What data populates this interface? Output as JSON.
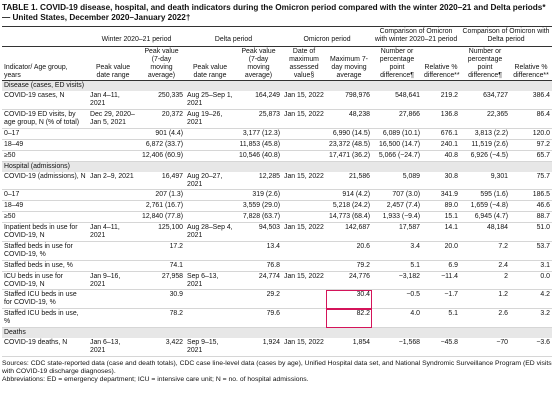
{
  "title": "TABLE 1. COVID-19 disease, hospital, and death indicators during the Omicron period compared with the winter 2020–21 and Delta periods*— United States, December 2020–January 2022†",
  "column_groups": [
    "Winter 2020–21 period",
    "Delta period",
    "Omicron period",
    "Comparison of Omicron with winter 2020–21 period",
    "Comparison of Omicron with Delta period"
  ],
  "columns": [
    "Indicator/ Age group, years",
    "Peak value date range",
    "Peak value (7-day moving average)",
    "Peak value date range",
    "Peak value (7-day moving average)",
    "Date of maximum assessed value§",
    "Maximum 7-day moving average",
    "Number or percentage point difference¶",
    "Relative % difference**",
    "Number or percentage point difference¶",
    "Relative % difference**"
  ],
  "sections": [
    {
      "label": "Disease (cases, ED visits)",
      "rows": [
        [
          "COVID-19 cases, N",
          "Jan 4–11, 2021",
          "250,335",
          "Aug 25–Sep 1, 2021",
          "164,249",
          "Jan 15, 2022",
          "798,976",
          "548,641",
          "219.2",
          "634,727",
          "386.4"
        ],
        [
          "COVID-19 ED visits, by age group, N (% of total)",
          "Dec 29, 2020–Jan 5, 2021",
          "20,372",
          "Aug 19–26, 2021",
          "25,873",
          "Jan 15, 2022",
          "48,238",
          "27,866",
          "136.8",
          "22,365",
          "86.4"
        ],
        [
          "0–17",
          null,
          "901 (4.4)",
          null,
          "3,177 (12.3)",
          null,
          "6,990 (14.5)",
          "6,089 (10.1)",
          "676.1",
          "3,813 (2.2)",
          "120.0"
        ],
        [
          "18–49",
          null,
          "6,872 (33.7)",
          null,
          "11,853 (45.8)",
          null,
          "23,372 (48.5)",
          "16,500 (14.7)",
          "240.1",
          "11,519 (2.6)",
          "97.2"
        ],
        [
          "≥50",
          null,
          "12,406 (60.9)",
          null,
          "10,546 (40.8)",
          null,
          "17,471 (36.2)",
          "5,066 (−24.7)",
          "40.8",
          "6,926 (−4.5)",
          "65.7"
        ]
      ]
    },
    {
      "label": "Hospital (admissions)",
      "rows": [
        [
          "COVID-19 (admissions), N",
          "Jan 2–9, 2021",
          "16,497",
          "Aug 20–27, 2021",
          "12,285",
          "Jan 15, 2022",
          "21,586",
          "5,089",
          "30.8",
          "9,301",
          "75.7"
        ],
        [
          "0–17",
          null,
          "207 (1.3)",
          null,
          "319 (2.6)",
          null,
          "914 (4.2)",
          "707 (3.0)",
          "341.9",
          "595 (1.6)",
          "186.5"
        ],
        [
          "18–49",
          null,
          "2,761 (16.7)",
          null,
          "3,559 (29.0)",
          null,
          "5,218 (24.2)",
          "2,457 (7.4)",
          "89.0",
          "1,659 (−4.8)",
          "46.6"
        ],
        [
          "≥50",
          null,
          "12,840 (77.8)",
          null,
          "7,828 (63.7)",
          null,
          "14,773 (68.4)",
          "1,933 (−9.4)",
          "15.1",
          "6,945 (4.7)",
          "88.7"
        ],
        [
          "Inpatient beds in use for COVID-19, N",
          "Jan 4–11, 2021",
          "125,100",
          "Aug 28–Sep 4, 2021",
          "94,503",
          "Jan 15, 2022",
          "142,687",
          "17,587",
          "14.1",
          "48,184",
          "51.0"
        ],
        [
          "Staffed beds in use for COVID-19, %",
          null,
          "17.2",
          null,
          "13.4",
          null,
          "20.6",
          "3.4",
          "20.0",
          "7.2",
          "53.7"
        ],
        [
          "Staffed beds in use, %",
          null,
          "74.1",
          null,
          "76.8",
          null,
          "79.2",
          "5.1",
          "6.9",
          "2.4",
          "3.1"
        ],
        [
          "ICU beds in use for COVID-19, N",
          "Jan 9–16, 2021",
          "27,958",
          "Sep 6–13, 2021",
          "24,774",
          "Jan 15, 2022",
          "24,776",
          "−3,182",
          "−11.4",
          "2",
          "0.0"
        ],
        [
          "Staffed ICU beds in use for COVID-19, %",
          null,
          "30.9",
          null,
          "29.2",
          null,
          "30.4",
          "−0.5",
          "−1.7",
          "1.2",
          "4.2"
        ],
        [
          "Staffed ICU beds in use, %",
          null,
          "78.2",
          null,
          "79.6",
          null,
          "82.2",
          "4.0",
          "5.1",
          "2.6",
          "3.2"
        ]
      ]
    },
    {
      "label": "Deaths",
      "rows": [
        [
          "COVID-19 deaths, N",
          "Jan 6–13, 2021",
          "3,422",
          "Sep 9–15, 2021",
          "1,924",
          "Jan 15, 2022",
          "1,854",
          "−1,568",
          "−45.8",
          "−70",
          "−3.6"
        ]
      ]
    }
  ],
  "footnotes": [
    "Sources: CDC state-reported data (case and death totals), CDC case line-level data (cases by age), Unified Hospital data set, and National Syndromic Surveillance Program (ED visits with COVID-19 discharge diagnoses).",
    "Abbreviations: ED = emergency department; ICU = intensive care unit; N = no. of hospital admissions."
  ]
}
